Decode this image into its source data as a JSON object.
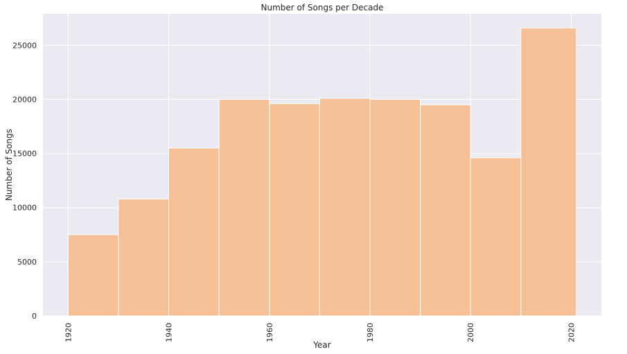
{
  "chart_data": {
    "type": "bar",
    "title": "Number of Songs per Decade",
    "xlabel": "Year",
    "ylabel": "Number of Songs",
    "bins": [
      {
        "start": 1920,
        "end": 1930,
        "value": 7500
      },
      {
        "start": 1930,
        "end": 1940,
        "value": 10800
      },
      {
        "start": 1940,
        "end": 1950,
        "value": 15500
      },
      {
        "start": 1950,
        "end": 1960,
        "value": 20000
      },
      {
        "start": 1960,
        "end": 1970,
        "value": 19600
      },
      {
        "start": 1970,
        "end": 1980,
        "value": 20100
      },
      {
        "start": 1980,
        "end": 1990,
        "value": 20000
      },
      {
        "start": 1990,
        "end": 2000,
        "value": 19500
      },
      {
        "start": 2000,
        "end": 2010,
        "value": 14600
      },
      {
        "start": 2010,
        "end": 2021,
        "value": 26600
      }
    ],
    "xlim": [
      1915,
      2026
    ],
    "ylim": [
      0,
      27900
    ],
    "xticks": [
      1920,
      1940,
      1960,
      1980,
      2000,
      2020
    ],
    "xtick_labels": [
      "1920",
      "1940",
      "1960",
      "1980",
      "2000",
      "2020"
    ],
    "yticks": [
      0,
      5000,
      10000,
      15000,
      20000,
      25000
    ],
    "ytick_labels": [
      "0",
      "5000",
      "10000",
      "15000",
      "20000",
      "25000"
    ],
    "grid": true,
    "colors": {
      "bar": "#f5c095",
      "bar_edge": "#ffffff",
      "plot_background": "#eaeaf2",
      "grid": "#ffffff",
      "text": "#262626"
    }
  }
}
